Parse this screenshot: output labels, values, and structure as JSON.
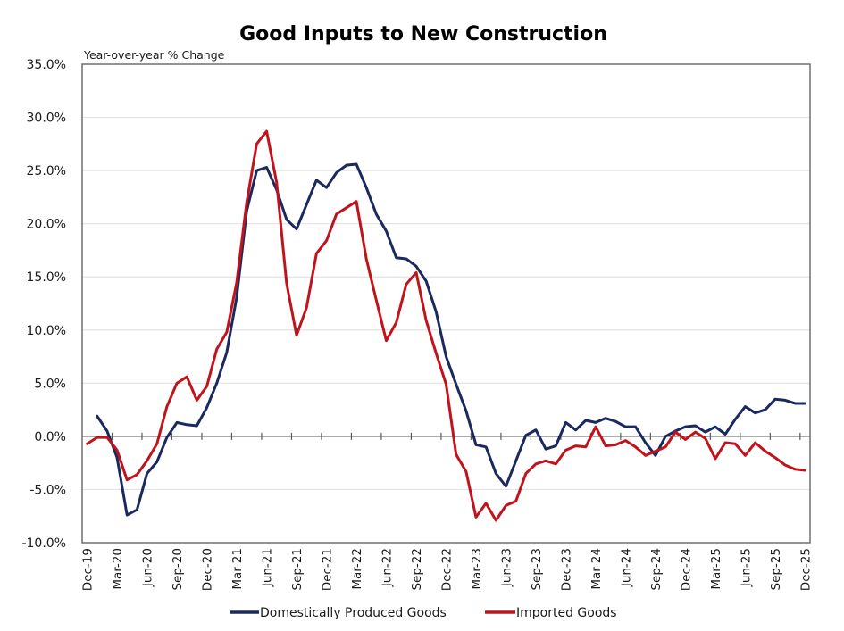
{
  "chart_data": {
    "type": "line",
    "title": "Good Inputs to New Construction",
    "ylabel": "Year-over-year % Change",
    "xlabel": "",
    "ylim": [
      -10,
      35
    ],
    "yticks": [
      -10,
      -5,
      0,
      5,
      10,
      15,
      20,
      25,
      30,
      35
    ],
    "ytick_labels": [
      "-10.0%",
      "-5.0%",
      "0.0%",
      "5.0%",
      "10.0%",
      "15.0%",
      "20.0%",
      "25.0%",
      "30.0%",
      "35.0%"
    ],
    "grid": true,
    "legend_position": "bottom",
    "x": [
      "Dec-19",
      "Jan-20",
      "Feb-20",
      "Mar-20",
      "Apr-20",
      "May-20",
      "Jun-20",
      "Jul-20",
      "Aug-20",
      "Sep-20",
      "Oct-20",
      "Nov-20",
      "Dec-20",
      "Jan-21",
      "Feb-21",
      "Mar-21",
      "Apr-21",
      "May-21",
      "Jun-21",
      "Jul-21",
      "Aug-21",
      "Sep-21",
      "Oct-21",
      "Nov-21",
      "Dec-21",
      "Jan-22",
      "Feb-22",
      "Mar-22",
      "Apr-22",
      "May-22",
      "Jun-22",
      "Jul-22",
      "Aug-22",
      "Sep-22",
      "Oct-22",
      "Nov-22",
      "Dec-22",
      "Jan-23",
      "Feb-23",
      "Mar-23",
      "Apr-23",
      "May-23",
      "Jun-23",
      "Jul-23",
      "Aug-23",
      "Sep-23",
      "Oct-23",
      "Nov-23",
      "Dec-23",
      "Jan-24",
      "Feb-24",
      "Mar-24",
      "Apr-24",
      "May-24",
      "Jun-24",
      "Jul-24",
      "Aug-24",
      "Sep-24",
      "Oct-24",
      "Nov-24",
      "Dec-24",
      "Jan-25",
      "Feb-25",
      "Mar-25",
      "Apr-25",
      "May-25",
      "Jun-25",
      "Jul-25",
      "Aug-25",
      "Sep-25",
      "Oct-25",
      "Nov-25",
      "Dec-25"
    ],
    "xtick_labels": [
      "Dec-19",
      "Mar-20",
      "Jun-20",
      "Sep-20",
      "Dec-20",
      "Mar-21",
      "Jun-21",
      "Sep-21",
      "Dec-21",
      "Mar-22",
      "Jun-22",
      "Sep-22",
      "Dec-22",
      "Mar-23",
      "Jun-23",
      "Sep-23",
      "Dec-23",
      "Mar-24",
      "Jun-24",
      "Sep-24",
      "Dec-24",
      "Mar-25",
      "Jun-25",
      "Sep-25",
      "Dec-25"
    ],
    "series": [
      {
        "name": "Domestically Produced Goods",
        "color": "#1b2a5e",
        "values": [
          null,
          1.9,
          0.5,
          -2.0,
          -7.4,
          -6.9,
          -3.5,
          -2.4,
          -0.1,
          1.3,
          1.1,
          1.0,
          2.7,
          5.0,
          7.9,
          13.1,
          21.2,
          25.0,
          25.3,
          23.2,
          20.4,
          19.5,
          21.8,
          24.1,
          23.4,
          24.8,
          25.5,
          25.6,
          23.4,
          20.9,
          19.3,
          16.8,
          16.7,
          16.0,
          14.6,
          11.7,
          7.5,
          4.9,
          2.4,
          -0.8,
          -1.0,
          -3.5,
          -4.7,
          -2.3,
          0.1,
          0.6,
          -1.2,
          -0.9,
          1.3,
          0.6,
          1.5,
          1.3,
          1.7,
          1.4,
          0.9,
          0.9,
          -0.6,
          -1.8,
          0.0,
          0.5,
          0.9,
          1.0,
          0.4,
          0.9,
          0.2,
          1.6,
          2.8,
          2.2,
          2.5,
          3.5,
          3.4,
          3.1,
          3.1
        ]
      },
      {
        "name": "Imported Goods",
        "color": "#c0141c",
        "values": [
          -0.7,
          -0.1,
          -0.1,
          -1.3,
          -4.1,
          -3.6,
          -2.3,
          -0.7,
          2.8,
          5.0,
          5.6,
          3.4,
          4.7,
          8.2,
          9.8,
          14.5,
          22.0,
          27.5,
          28.7,
          23.9,
          14.4,
          9.5,
          12.1,
          17.2,
          18.4,
          20.9,
          21.5,
          22.1,
          16.7,
          12.8,
          9.0,
          10.7,
          14.3,
          15.4,
          10.9,
          7.8,
          4.9,
          -1.7,
          -3.3,
          -7.6,
          -6.3,
          -7.9,
          -6.5,
          -6.1,
          -3.5,
          -2.6,
          -2.3,
          -2.6,
          -1.3,
          -0.9,
          -1.0,
          0.9,
          -0.9,
          -0.8,
          -0.4,
          -1.0,
          -1.8,
          -1.4,
          -1.0,
          0.4,
          -0.3,
          0.4,
          -0.2,
          -2.1,
          -0.6,
          -0.7,
          -1.8,
          -0.6,
          -1.4,
          -2.0,
          -2.7,
          -3.1,
          -3.2
        ]
      }
    ]
  }
}
